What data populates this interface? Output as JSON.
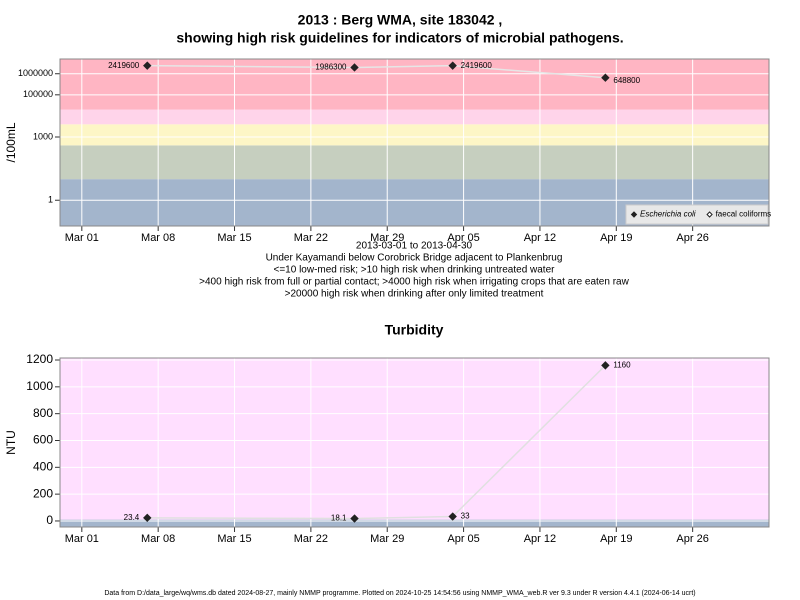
{
  "chart_data": [
    {
      "type": "line",
      "title": [
        "2013 : Berg WMA, site 183042 ,",
        "showing high risk guidelines for indicators of microbial pathogens."
      ],
      "subtitle": [
        "2013-03-01 to 2013-04-30",
        "Under Kayamandi below Corobrick Bridge adjacent to Plankenbrug",
        "<=10 low-med risk; >10 high risk when drinking untreated water",
        ">400 high risk from full or partial contact; >4000 high risk when irrigating crops that are eaten raw",
        ">20000 high risk when drinking after only limited treatment"
      ],
      "y_label": "/100mL",
      "x": [
        "2013-03-07",
        "2013-03-26",
        "2013-04-04",
        "2013-04-18"
      ],
      "series": [
        {
          "name": "Escherichia coli",
          "color": "#222222",
          "marker": "diamond",
          "values": [
            2419600,
            1986300,
            2419600,
            648800
          ]
        },
        {
          "name": "faecal coliforms",
          "color": "#222222",
          "marker": "open-diamond",
          "values": [
            null,
            null,
            null,
            null
          ]
        }
      ],
      "log_scale": true,
      "ylim": [
        0.06,
        5000000
      ],
      "yticks": [
        1,
        1000,
        100000,
        1000000
      ],
      "xlim": [
        "2013-02-27",
        "2013-05-03"
      ],
      "xticks": [
        {
          "value": "2013-03-01",
          "label": "Mar 01"
        },
        {
          "value": "2013-03-08",
          "label": "Mar 08"
        },
        {
          "value": "2013-03-15",
          "label": "Mar 15"
        },
        {
          "value": "2013-03-22",
          "label": "Mar 22"
        },
        {
          "value": "2013-03-29",
          "label": "Mar 29"
        },
        {
          "value": "2013-04-05",
          "label": "Apr 05"
        },
        {
          "value": "2013-04-12",
          "label": "Apr 12"
        },
        {
          "value": "2013-04-19",
          "label": "Apr 19"
        },
        {
          "value": "2013-04-26",
          "label": "Apr 26"
        }
      ],
      "bands": [
        {
          "from": 0.06,
          "to": 10,
          "color": "#a3b5cc"
        },
        {
          "from": 10,
          "to": 400,
          "color": "#c6cfbf"
        },
        {
          "from": 400,
          "to": 4000,
          "color": "#fdf6c6"
        },
        {
          "from": 4000,
          "to": 20000,
          "color": "#ffd4ea"
        },
        {
          "from": 20000,
          "to": 5000000,
          "color": "#ffb5c3"
        }
      ],
      "grid": true,
      "legend": "bottomright",
      "line_color": "#e6e6e6"
    },
    {
      "type": "line",
      "title": "Turbidity",
      "y_label": "NTU",
      "x": [
        "2013-03-07",
        "2013-03-26",
        "2013-04-04",
        "2013-04-18"
      ],
      "values": [
        23.4,
        18.1,
        33,
        1160
      ],
      "color": "#222222",
      "ylim": [
        -45,
        1215
      ],
      "yticks": [
        0,
        200,
        400,
        600,
        800,
        1000,
        1200
      ],
      "xlim": [
        "2013-02-27",
        "2013-05-03"
      ],
      "xticks": [
        {
          "value": "2013-03-01",
          "label": "Mar 01"
        },
        {
          "value": "2013-03-08",
          "label": "Mar 08"
        },
        {
          "value": "2013-03-15",
          "label": "Mar 15"
        },
        {
          "value": "2013-03-22",
          "label": "Mar 22"
        },
        {
          "value": "2013-03-29",
          "label": "Mar 29"
        },
        {
          "value": "2013-04-05",
          "label": "Apr 05"
        },
        {
          "value": "2013-04-12",
          "label": "Apr 12"
        },
        {
          "value": "2013-04-19",
          "label": "Apr 19"
        },
        {
          "value": "2013-04-26",
          "label": "Apr 26"
        }
      ],
      "bands": [
        {
          "from": -45,
          "to": 10,
          "color": "#a3b5cc"
        },
        {
          "from": 10,
          "to": 1215,
          "color": "#ffdfff"
        }
      ],
      "grid": true,
      "line_color": "#e0e0e0"
    }
  ],
  "footer": "Data from D:/data_large/wq/wms.db dated 2024-08-27, mainly NMMP programme. Plotted on 2024-10-25 14:54:56 using NMMP_WMA_web.R ver 9.3 under R version 4.4.1 (2024-06-14 ucrt)"
}
